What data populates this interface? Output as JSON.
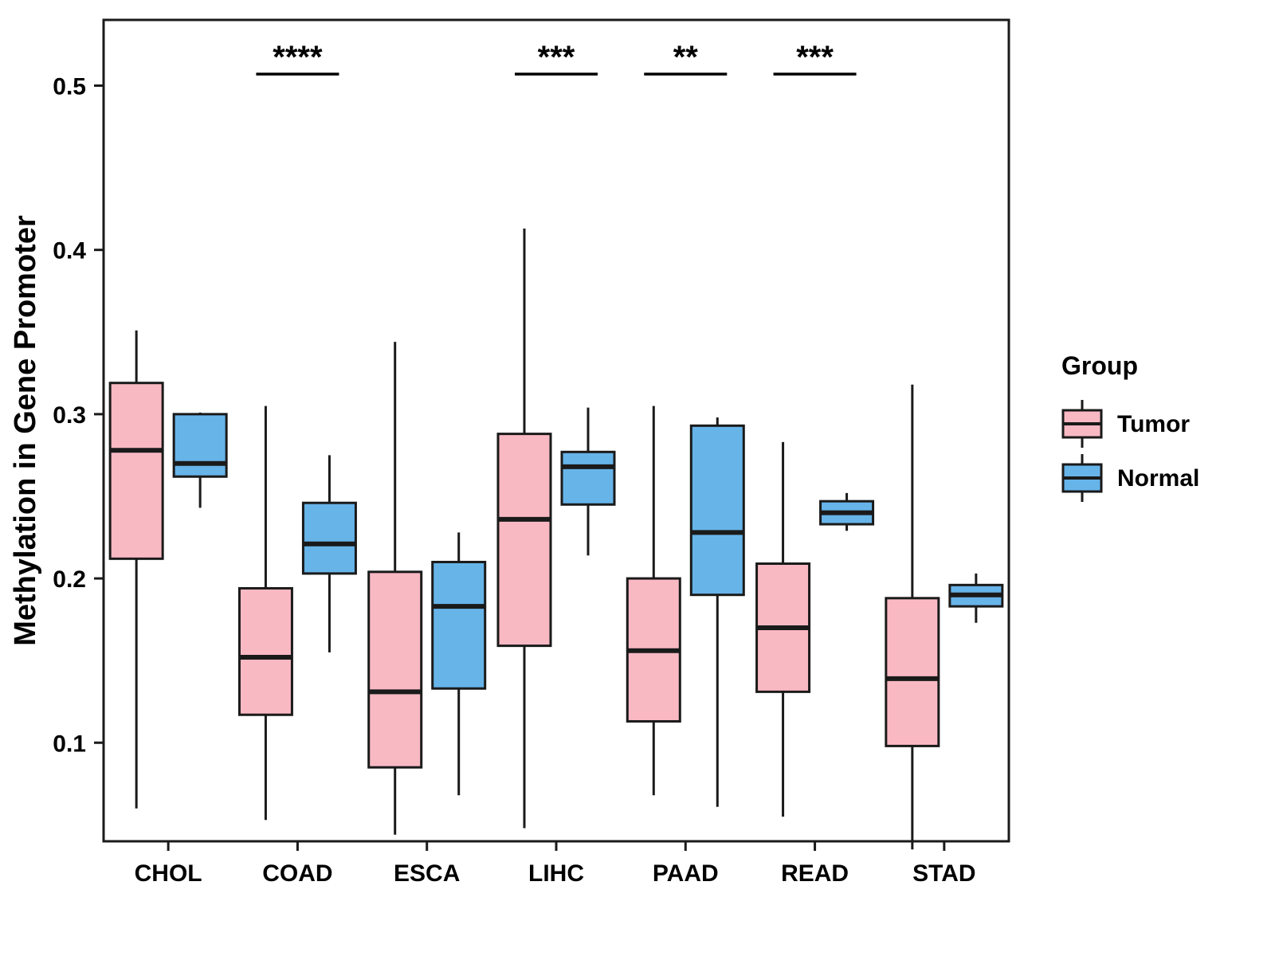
{
  "chart_data": {
    "type": "grouped_boxplot",
    "title": "",
    "xlabel": "",
    "ylabel": "Methylation in Gene Promoter",
    "ylim": [
      0.04,
      0.54
    ],
    "yticks": [
      0.1,
      0.2,
      0.3,
      0.4,
      0.5
    ],
    "grid": false,
    "categories": [
      "CHOL",
      "COAD",
      "ESCA",
      "LIHC",
      "PAAD",
      "READ",
      "STAD"
    ],
    "legend": {
      "title": "Group",
      "position": "right",
      "entries": [
        "Tumor",
        "Normal"
      ]
    },
    "colors": {
      "tumor": "#F9B9C3",
      "normal": "#67B4E9",
      "stroke": "#1A1A1A",
      "text": "#000000"
    },
    "series": [
      {
        "name": "Tumor",
        "color": "#F9B9C3",
        "boxes": [
          {
            "category": "CHOL",
            "min": 0.06,
            "q1": 0.212,
            "median": 0.278,
            "q3": 0.319,
            "max": 0.351
          },
          {
            "category": "COAD",
            "min": 0.053,
            "q1": 0.117,
            "median": 0.152,
            "q3": 0.194,
            "max": 0.305
          },
          {
            "category": "ESCA",
            "min": 0.044,
            "q1": 0.085,
            "median": 0.131,
            "q3": 0.204,
            "max": 0.344
          },
          {
            "category": "LIHC",
            "min": 0.048,
            "q1": 0.159,
            "median": 0.236,
            "q3": 0.288,
            "max": 0.413
          },
          {
            "category": "PAAD",
            "min": 0.068,
            "q1": 0.113,
            "median": 0.156,
            "q3": 0.2,
            "max": 0.305
          },
          {
            "category": "READ",
            "min": 0.055,
            "q1": 0.131,
            "median": 0.17,
            "q3": 0.209,
            "max": 0.283
          },
          {
            "category": "STAD",
            "min": 0.035,
            "q1": 0.098,
            "median": 0.139,
            "q3": 0.188,
            "max": 0.318
          }
        ]
      },
      {
        "name": "Normal",
        "color": "#67B4E9",
        "boxes": [
          {
            "category": "CHOL",
            "min": 0.243,
            "q1": 0.262,
            "median": 0.27,
            "q3": 0.3,
            "max": 0.301
          },
          {
            "category": "COAD",
            "min": 0.155,
            "q1": 0.203,
            "median": 0.221,
            "q3": 0.246,
            "max": 0.275
          },
          {
            "category": "ESCA",
            "min": 0.068,
            "q1": 0.133,
            "median": 0.183,
            "q3": 0.21,
            "max": 0.228
          },
          {
            "category": "LIHC",
            "min": 0.214,
            "q1": 0.245,
            "median": 0.268,
            "q3": 0.277,
            "max": 0.304
          },
          {
            "category": "PAAD",
            "min": 0.061,
            "q1": 0.19,
            "median": 0.228,
            "q3": 0.293,
            "max": 0.298
          },
          {
            "category": "READ",
            "min": 0.229,
            "q1": 0.233,
            "median": 0.24,
            "q3": 0.247,
            "max": 0.252
          },
          {
            "category": "STAD",
            "min": 0.173,
            "q1": 0.183,
            "median": 0.19,
            "q3": 0.196,
            "max": 0.203
          }
        ]
      }
    ],
    "significance": [
      {
        "category": "COAD",
        "label": "****",
        "y": 0.507
      },
      {
        "category": "LIHC",
        "label": "***",
        "y": 0.507
      },
      {
        "category": "PAAD",
        "label": "**",
        "y": 0.507
      },
      {
        "category": "READ",
        "label": "***",
        "y": 0.507
      }
    ]
  }
}
